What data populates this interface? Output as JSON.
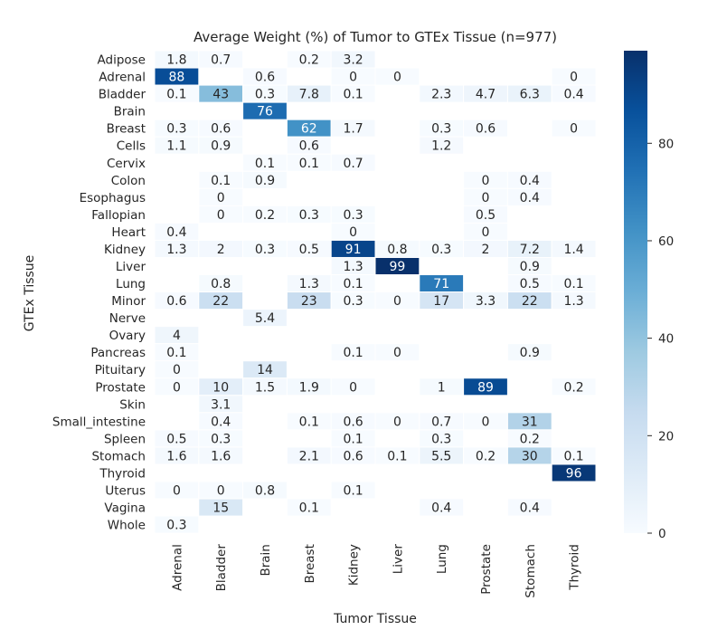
{
  "chart_data": {
    "type": "heatmap",
    "title": "Average Weight (%) of Tumor to GTEx Tissue (n=977)",
    "xlabel": "Tumor Tissue",
    "ylabel": "GTEx Tissue",
    "x_categories": [
      "Adrenal",
      "Bladder",
      "Brain",
      "Breast",
      "Kidney",
      "Liver",
      "Lung",
      "Prostate",
      "Stomach",
      "Thyroid"
    ],
    "y_categories": [
      "Adipose",
      "Adrenal",
      "Bladder",
      "Brain",
      "Breast",
      "Cells",
      "Cervix",
      "Colon",
      "Esophagus",
      "Fallopian",
      "Heart",
      "Kidney",
      "Liver",
      "Lung",
      "Minor",
      "Nerve",
      "Ovary",
      "Pancreas",
      "Pituitary",
      "Prostate",
      "Skin",
      "Small_intestine",
      "Spleen",
      "Stomach",
      "Thyroid",
      "Uterus",
      "Vagina",
      "Whole"
    ],
    "values": [
      [
        "1.8",
        "0.7",
        null,
        "0.2",
        "3.2",
        null,
        null,
        null,
        null,
        null
      ],
      [
        "88",
        null,
        "0.6",
        null,
        "0",
        "0",
        null,
        null,
        null,
        "0"
      ],
      [
        "0.1",
        "43",
        "0.3",
        "7.8",
        "0.1",
        null,
        "2.3",
        "4.7",
        "6.3",
        "0.4"
      ],
      [
        null,
        null,
        "76",
        null,
        null,
        null,
        null,
        null,
        null,
        null
      ],
      [
        "0.3",
        "0.6",
        null,
        "62",
        "1.7",
        null,
        "0.3",
        "0.6",
        null,
        "0"
      ],
      [
        "1.1",
        "0.9",
        null,
        "0.6",
        null,
        null,
        "1.2",
        null,
        null,
        null
      ],
      [
        null,
        null,
        "0.1",
        "0.1",
        "0.7",
        null,
        null,
        null,
        null,
        null
      ],
      [
        null,
        "0.1",
        "0.9",
        null,
        null,
        null,
        null,
        "0",
        "0.4",
        null
      ],
      [
        null,
        "0",
        null,
        null,
        null,
        null,
        null,
        "0",
        "0.4",
        null
      ],
      [
        null,
        "0",
        "0.2",
        "0.3",
        "0.3",
        null,
        null,
        "0.5",
        null,
        null
      ],
      [
        "0.4",
        null,
        null,
        null,
        "0",
        null,
        null,
        "0",
        null,
        null
      ],
      [
        "1.3",
        "2",
        "0.3",
        "0.5",
        "91",
        "0.8",
        "0.3",
        "2",
        "7.2",
        "1.4"
      ],
      [
        null,
        null,
        null,
        null,
        "1.3",
        "99",
        null,
        null,
        "0.9",
        null
      ],
      [
        null,
        "0.8",
        null,
        "1.3",
        "0.1",
        null,
        "71",
        null,
        "0.5",
        "0.1"
      ],
      [
        "0.6",
        "22",
        null,
        "23",
        "0.3",
        "0",
        "17",
        "3.3",
        "22",
        "1.3"
      ],
      [
        null,
        null,
        "5.4",
        null,
        null,
        null,
        null,
        null,
        null,
        null
      ],
      [
        "4",
        null,
        null,
        null,
        null,
        null,
        null,
        null,
        null,
        null
      ],
      [
        "0.1",
        null,
        null,
        null,
        "0.1",
        "0",
        null,
        null,
        "0.9",
        null
      ],
      [
        "0",
        null,
        "14",
        null,
        null,
        null,
        null,
        null,
        null,
        null
      ],
      [
        "0",
        "10",
        "1.5",
        "1.9",
        "0",
        null,
        "1",
        "89",
        null,
        "0.2"
      ],
      [
        null,
        "3.1",
        null,
        null,
        null,
        null,
        null,
        null,
        null,
        null
      ],
      [
        null,
        "0.4",
        null,
        "0.1",
        "0.6",
        "0",
        "0.7",
        "0",
        "31",
        null
      ],
      [
        "0.5",
        "0.3",
        null,
        null,
        "0.1",
        null,
        "0.3",
        null,
        "0.2",
        null
      ],
      [
        "1.6",
        "1.6",
        null,
        "2.1",
        "0.6",
        "0.1",
        "5.5",
        "0.2",
        "30",
        "0.1"
      ],
      [
        null,
        null,
        null,
        null,
        null,
        null,
        null,
        null,
        null,
        "96"
      ],
      [
        "0",
        "0",
        "0.8",
        null,
        "0.1",
        null,
        null,
        null,
        null,
        null
      ],
      [
        null,
        "15",
        null,
        "0.1",
        null,
        null,
        "0.4",
        null,
        "0.4",
        null
      ],
      [
        "0.3",
        null,
        null,
        null,
        null,
        null,
        null,
        null,
        null,
        null
      ]
    ],
    "colorbar": {
      "min": 0,
      "max": 99,
      "ticks": [
        0,
        20,
        40,
        60,
        80
      ]
    },
    "colormap": "Blues",
    "colors": [
      "#f7fbff",
      "#deebf7",
      "#c6dbef",
      "#9ecae1",
      "#6baed6",
      "#4292c6",
      "#2171b5",
      "#08519c",
      "#08306b"
    ]
  }
}
